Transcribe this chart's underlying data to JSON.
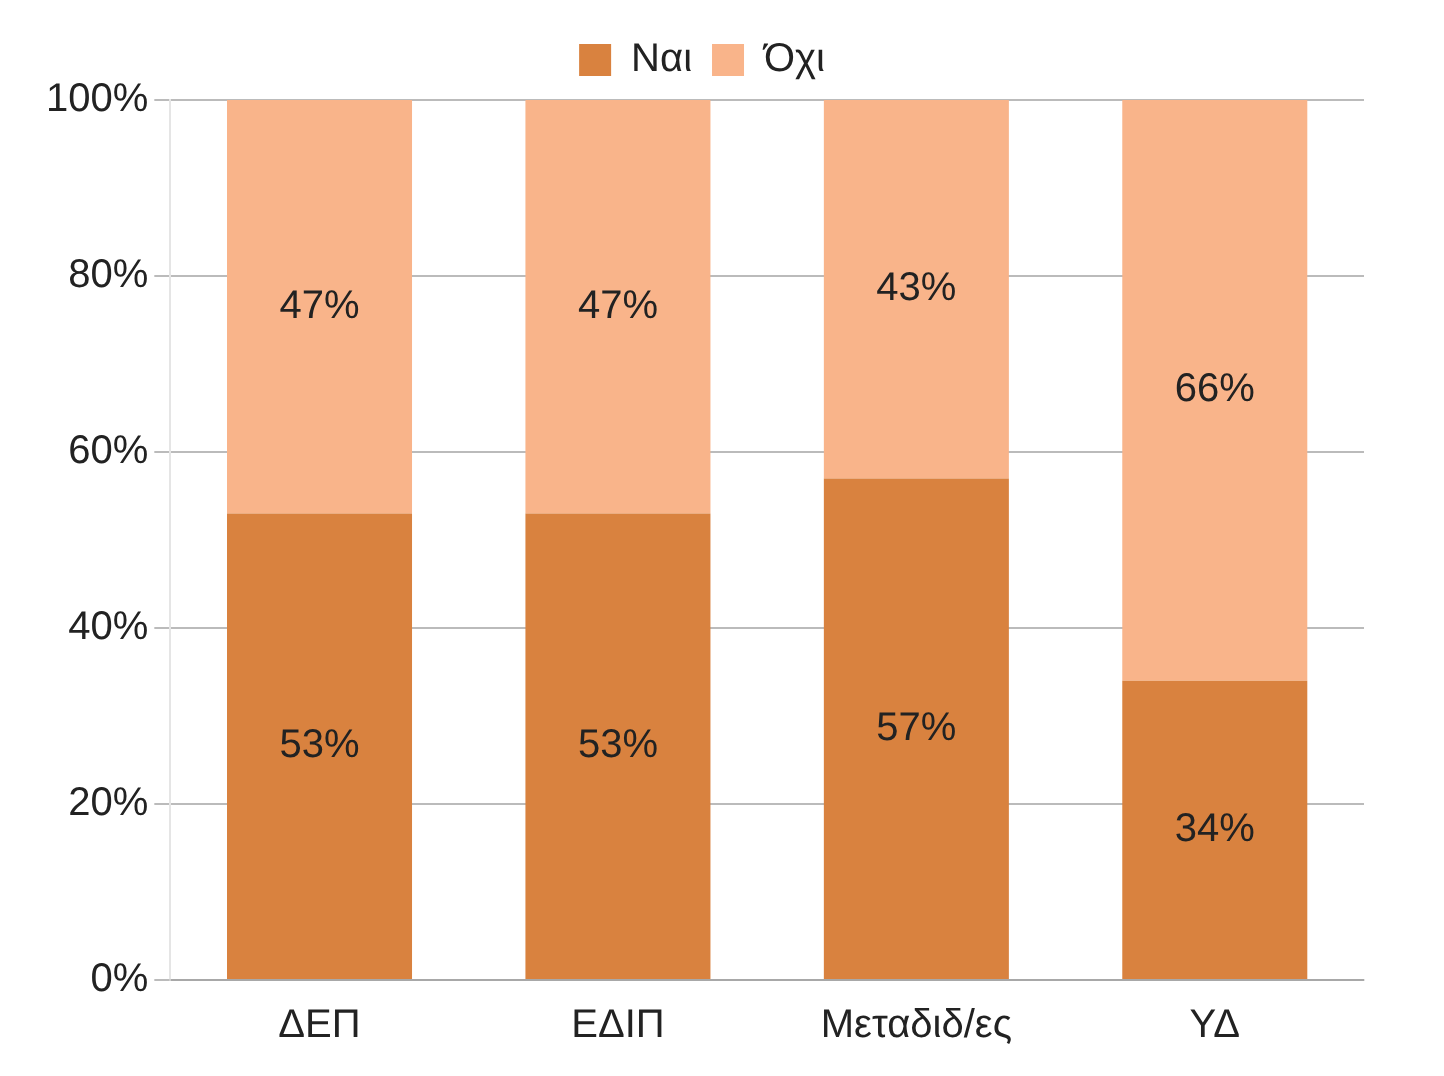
{
  "chart_data": {
    "type": "bar",
    "stacked": true,
    "categories": [
      "ΔΕΠ",
      "ΕΔΙΠ",
      "Μεταδιδ/ες",
      "ΥΔ"
    ],
    "series": [
      {
        "name": "Ναι",
        "color": "#d9823f",
        "values": [
          53,
          53,
          57,
          34
        ],
        "value_labels": [
          "53%",
          "53%",
          "57%",
          "34%"
        ]
      },
      {
        "name": "Όχι",
        "color": "#f9b48a",
        "values": [
          47,
          47,
          43,
          66
        ],
        "value_labels": [
          "47%",
          "47%",
          "43%",
          "66%"
        ]
      }
    ],
    "ylim": [
      0,
      100
    ],
    "yticks": [
      {
        "value": 0,
        "label": "0%"
      },
      {
        "value": 20,
        "label": "20%"
      },
      {
        "value": 40,
        "label": "40%"
      },
      {
        "value": 60,
        "label": "60%"
      },
      {
        "value": 80,
        "label": "80%"
      },
      {
        "value": 100,
        "label": "100%"
      }
    ],
    "grid": "y",
    "legend": "top"
  }
}
